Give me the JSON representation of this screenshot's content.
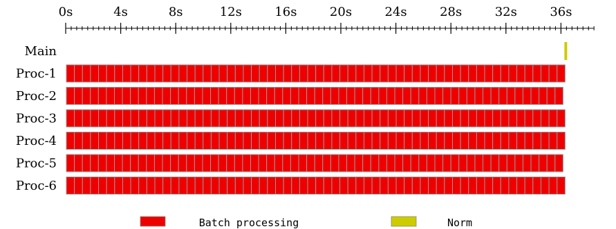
{
  "chart_data": {
    "type": "timeline",
    "xlabel": "",
    "x_ticks": [
      "0s",
      "4s",
      "8s",
      "12s",
      "16s",
      "20s",
      "24s",
      "28s",
      "32s",
      "36s"
    ],
    "x_tick_values": [
      0,
      4,
      8,
      12,
      16,
      20,
      24,
      28,
      32,
      36
    ],
    "xlim": [
      0,
      38.4
    ],
    "minor_tick_step": 0.4,
    "rows": [
      {
        "label": "Main",
        "tasks": [
          {
            "category": "Norm",
            "start": 36.25,
            "end": 36.45
          }
        ]
      },
      {
        "label": "Proc-1",
        "segments": 62,
        "start": 0.05,
        "end": 36.3,
        "category": "Batch processing"
      },
      {
        "label": "Proc-2",
        "segments": 62,
        "start": 0.05,
        "end": 36.15,
        "category": "Batch processing"
      },
      {
        "label": "Proc-3",
        "segments": 62,
        "start": 0.05,
        "end": 36.3,
        "category": "Batch processing"
      },
      {
        "label": "Proc-4",
        "segments": 62,
        "start": 0.05,
        "end": 36.3,
        "category": "Batch processing"
      },
      {
        "label": "Proc-5",
        "segments": 62,
        "start": 0.05,
        "end": 36.15,
        "category": "Batch processing"
      },
      {
        "label": "Proc-6",
        "segments": 62,
        "start": 0.05,
        "end": 36.3,
        "category": "Batch processing"
      }
    ],
    "legend": [
      {
        "label": "Batch processing",
        "color": "#ee0000"
      },
      {
        "label": "Norm",
        "color": "#cccc00"
      }
    ],
    "segment_border_color": "#999999"
  }
}
